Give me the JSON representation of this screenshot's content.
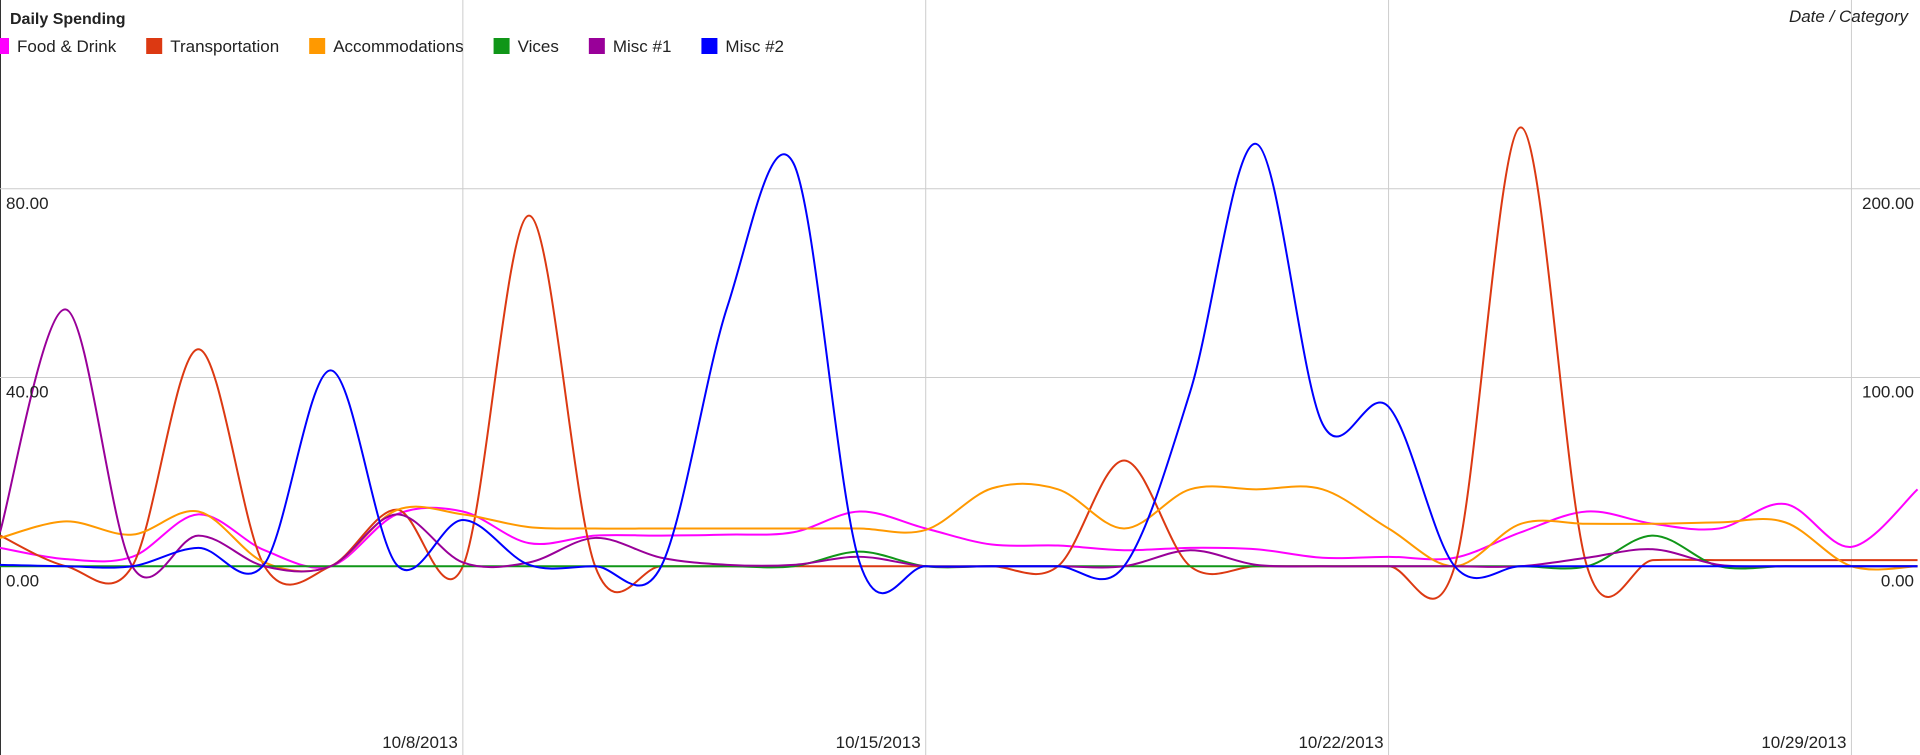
{
  "chart_data": {
    "type": "line",
    "title": "Daily Spending",
    "x_axis_title": "Date / Category",
    "categories": [
      null,
      null,
      null,
      null,
      null,
      null,
      null,
      "10/8/2013",
      null,
      null,
      null,
      null,
      null,
      null,
      "10/15/2013",
      null,
      null,
      null,
      null,
      null,
      null,
      "10/22/2013",
      null,
      null,
      null,
      null,
      null,
      null,
      "10/29/2013",
      null
    ],
    "ylim": [
      -40,
      120
    ],
    "yticks": [
      {
        "value": 0,
        "label": "0.00"
      },
      {
        "value": 40,
        "label": "40.00"
      },
      {
        "value": 80,
        "label": "80.00"
      }
    ],
    "y2lim": [
      -100,
      300
    ],
    "y2ticks": [
      {
        "value": 0,
        "label": "0.00"
      },
      {
        "value": 100,
        "label": "100.00"
      },
      {
        "value": 200,
        "label": "200.00"
      }
    ],
    "grid": true,
    "smooth": true,
    "legend": "top-left",
    "series": [
      {
        "name": "Food & Drink",
        "color": "#ff00ff",
        "values": [
          3.9,
          1.5,
          2,
          11,
          3.4,
          0,
          11,
          11.6,
          4.9,
          6.5,
          6.5,
          6.7,
          7.2,
          11.6,
          8,
          4.6,
          4.4,
          3.4,
          3.9,
          3.6,
          1.8,
          2,
          1.8,
          7.2,
          11.6,
          9,
          8,
          13.2,
          4.1,
          16.3
        ]
      },
      {
        "name": "Transportation",
        "color": "#dc3912",
        "values": [
          6.5,
          0,
          0,
          46,
          0,
          0,
          12,
          0,
          74.3,
          0,
          0,
          0,
          0,
          0,
          0,
          0,
          0,
          22.4,
          0,
          0,
          0,
          0,
          0,
          93,
          0,
          1.3,
          1.3,
          1.3,
          1.3,
          1.3
        ]
      },
      {
        "name": "Accommodations",
        "color": "#ff9900",
        "values": [
          6,
          9.5,
          6.7,
          11.6,
          0.8,
          0,
          11.9,
          11,
          8.3,
          8,
          8,
          8,
          8,
          8,
          7.7,
          16.5,
          16.3,
          8,
          16.3,
          16.3,
          16.3,
          8,
          0,
          9,
          9,
          9,
          9.3,
          9.3,
          0,
          0
        ]
      },
      {
        "name": "Vices",
        "color": "#109618",
        "values": [
          0,
          0,
          0,
          0,
          0,
          0,
          0,
          0,
          0,
          0,
          0,
          0,
          0,
          3.1,
          0,
          0,
          0,
          0,
          0,
          0,
          0,
          0,
          0,
          0,
          0,
          6.5,
          0,
          0,
          0,
          0
        ]
      },
      {
        "name": "Misc #1",
        "color": "#990099",
        "values": [
          7.2,
          54.4,
          0,
          6.5,
          0,
          0,
          11,
          0.8,
          0.8,
          6,
          1.8,
          0.3,
          0.3,
          2,
          0,
          0,
          0,
          0,
          3.4,
          0.3,
          0,
          0,
          0,
          0,
          1.8,
          3.6,
          0.3,
          0,
          0,
          0
        ]
      },
      {
        "name": "Misc #2",
        "color": "#0000ff",
        "values": [
          0.3,
          0,
          0,
          3.9,
          0.5,
          41.5,
          0.3,
          9.8,
          0.3,
          0,
          0,
          55,
          85.4,
          0.8,
          0,
          0,
          0,
          0,
          37,
          89.5,
          30.2,
          33.8,
          0,
          0,
          0,
          0,
          0,
          0,
          0,
          0
        ]
      }
    ]
  }
}
